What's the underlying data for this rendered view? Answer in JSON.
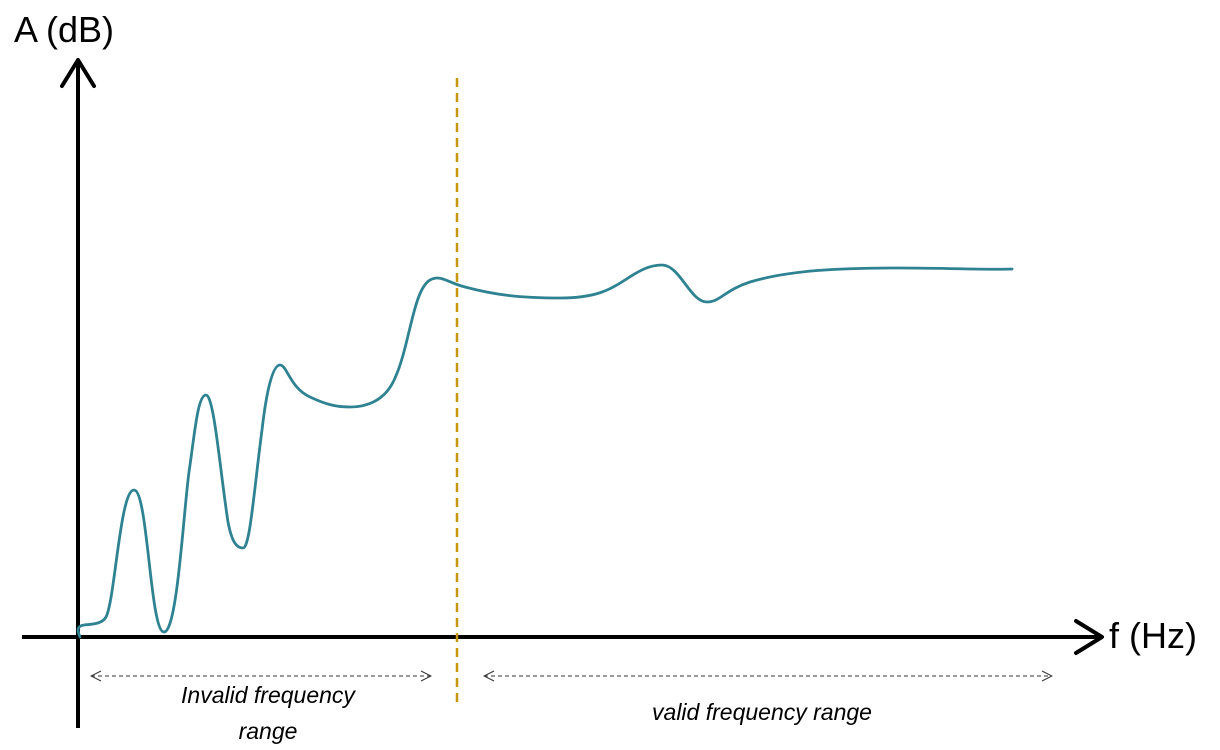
{
  "diagram": {
    "y_axis_label": "A (dB)",
    "x_axis_label": "f (Hz)",
    "invalid_range_label_line1": "Invalid frequency",
    "invalid_range_label_line2": "range",
    "valid_range_label": "valid frequency range"
  },
  "colors": {
    "curve": "#2e8291",
    "threshold_line": "#c8960a",
    "axis": "#000000",
    "range_arrow": "#333333"
  }
}
